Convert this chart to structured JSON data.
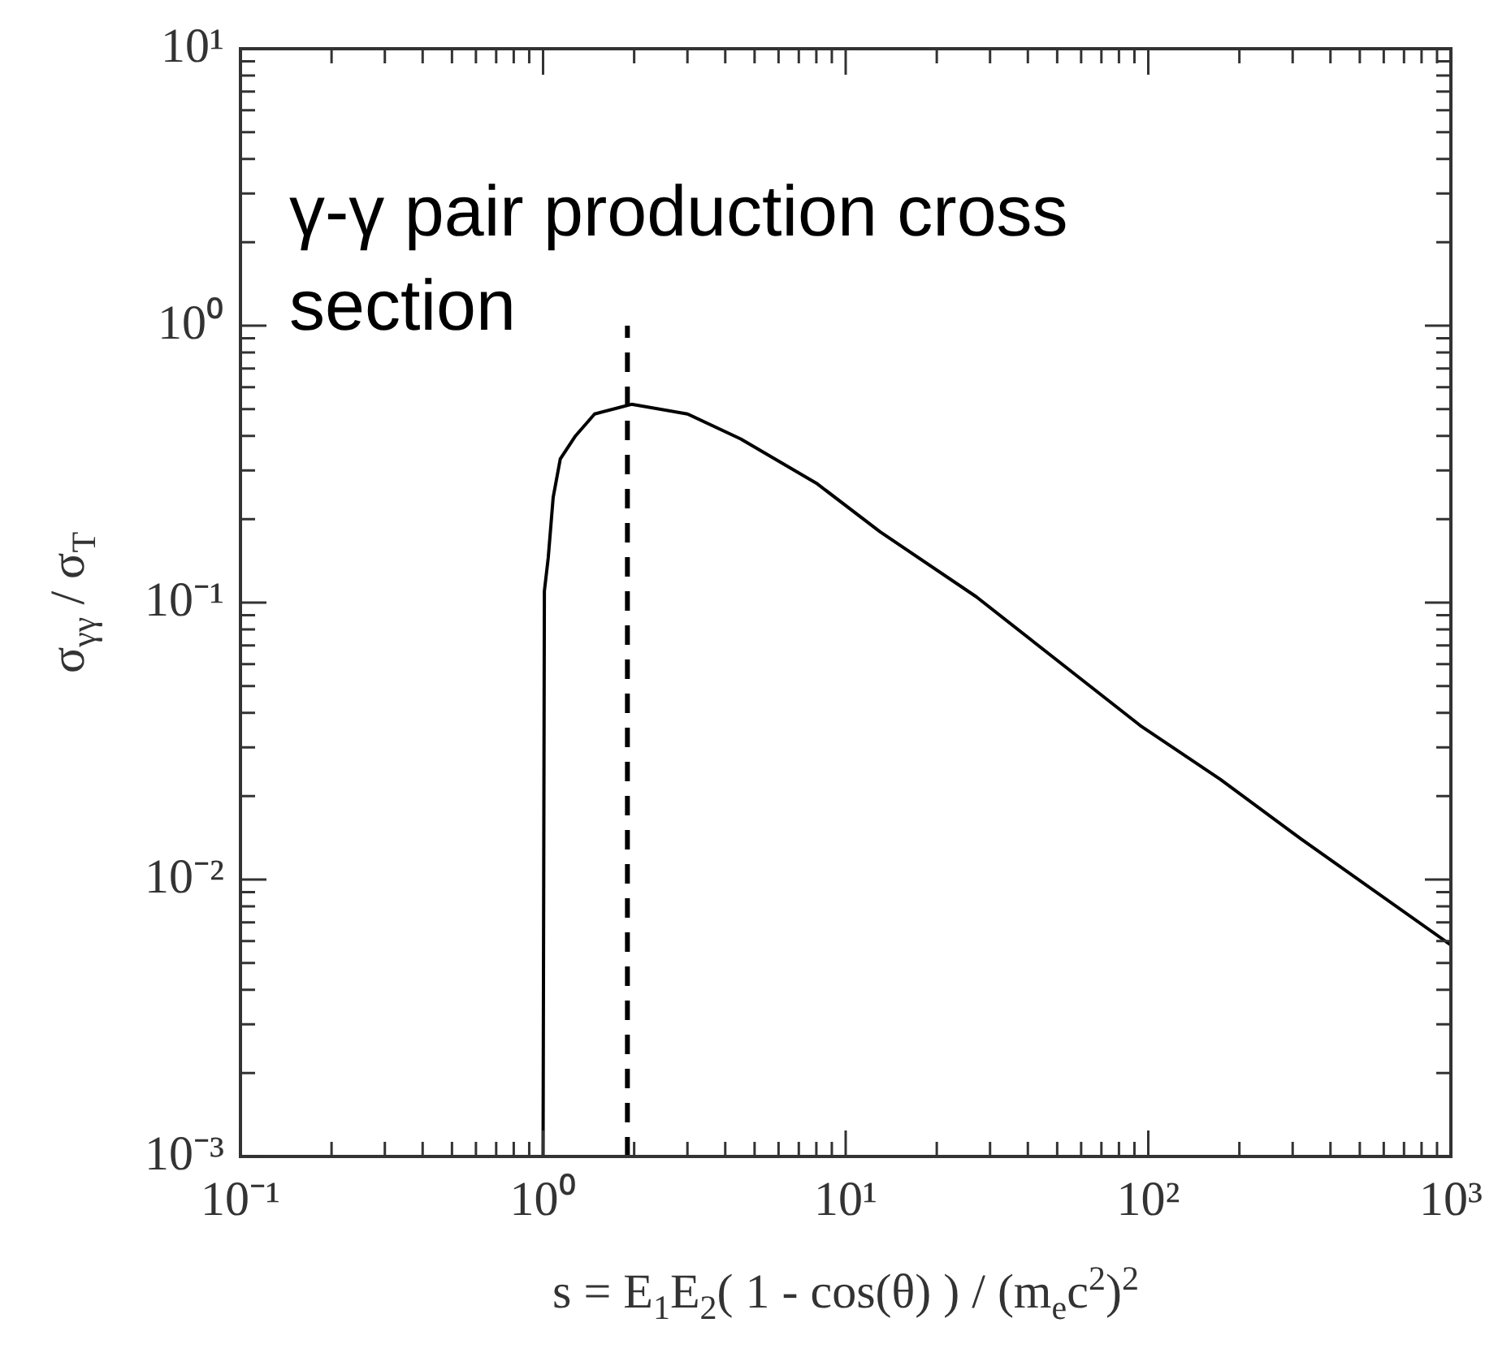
{
  "chart_data": {
    "type": "line",
    "xlabel": "s = E$_{1}$E$_{2}$( 1 - cos(θ) ) / (m$_{e}$c$^{2}$)$^{2}$",
    "ylabel": "σ$_{γγ}$ / σ$_{T}$",
    "annotations": [
      "γ-γ pair production cross section"
    ],
    "log": "xy",
    "xlim": [
      0.1,
      1000
    ],
    "ylim": [
      0.001,
      10
    ],
    "xticks": [
      {
        "value": 0.1,
        "label": "10⁻¹"
      },
      {
        "value": 0.2,
        "label": null
      },
      {
        "value": 0.3,
        "label": null
      },
      {
        "value": 0.4,
        "label": null
      },
      {
        "value": 0.5,
        "label": null
      },
      {
        "value": 0.6,
        "label": null
      },
      {
        "value": 0.7,
        "label": null
      },
      {
        "value": 0.8,
        "label": null
      },
      {
        "value": 0.9,
        "label": null
      },
      {
        "value": 1,
        "label": "10⁰"
      },
      {
        "value": 2,
        "label": null
      },
      {
        "value": 3,
        "label": null
      },
      {
        "value": 4,
        "label": null
      },
      {
        "value": 5,
        "label": null
      },
      {
        "value": 6,
        "label": null
      },
      {
        "value": 7,
        "label": null
      },
      {
        "value": 8,
        "label": null
      },
      {
        "value": 9,
        "label": null
      },
      {
        "value": 10,
        "label": "10¹"
      },
      {
        "value": 20,
        "label": null
      },
      {
        "value": 30,
        "label": null
      },
      {
        "value": 40,
        "label": null
      },
      {
        "value": 50,
        "label": null
      },
      {
        "value": 60,
        "label": null
      },
      {
        "value": 70,
        "label": null
      },
      {
        "value": 80,
        "label": null
      },
      {
        "value": 90,
        "label": null
      },
      {
        "value": 100,
        "label": "10²"
      },
      {
        "value": 200,
        "label": null
      },
      {
        "value": 300,
        "label": null
      },
      {
        "value": 400,
        "label": null
      },
      {
        "value": 500,
        "label": null
      },
      {
        "value": 600,
        "label": null
      },
      {
        "value": 700,
        "label": null
      },
      {
        "value": 800,
        "label": null
      },
      {
        "value": 900,
        "label": null
      },
      {
        "value": 1000,
        "label": "10³"
      }
    ],
    "yticks": [
      {
        "value": 0.001,
        "label": "10⁻³"
      },
      {
        "value": 0.002,
        "label": null
      },
      {
        "value": 0.003,
        "label": null
      },
      {
        "value": 0.004,
        "label": null
      },
      {
        "value": 0.005,
        "label": null
      },
      {
        "value": 0.006,
        "label": null
      },
      {
        "value": 0.007,
        "label": null
      },
      {
        "value": 0.008,
        "label": null
      },
      {
        "value": 0.009,
        "label": null
      },
      {
        "value": 0.01,
        "label": "10⁻²"
      },
      {
        "value": 0.02,
        "label": null
      },
      {
        "value": 0.03,
        "label": null
      },
      {
        "value": 0.04,
        "label": null
      },
      {
        "value": 0.05,
        "label": null
      },
      {
        "value": 0.06,
        "label": null
      },
      {
        "value": 0.07,
        "label": null
      },
      {
        "value": 0.08,
        "label": null
      },
      {
        "value": 0.09,
        "label": null
      },
      {
        "value": 0.1,
        "label": "10⁻¹"
      },
      {
        "value": 0.2,
        "label": null
      },
      {
        "value": 0.3,
        "label": null
      },
      {
        "value": 0.4,
        "label": null
      },
      {
        "value": 0.5,
        "label": null
      },
      {
        "value": 0.6,
        "label": null
      },
      {
        "value": 0.7,
        "label": null
      },
      {
        "value": 0.8,
        "label": null
      },
      {
        "value": 0.9,
        "label": null
      },
      {
        "value": 1,
        "label": "10⁰"
      },
      {
        "value": 2,
        "label": null
      },
      {
        "value": 3,
        "label": null
      },
      {
        "value": 4,
        "label": null
      },
      {
        "value": 5,
        "label": null
      },
      {
        "value": 6,
        "label": null
      },
      {
        "value": 7,
        "label": null
      },
      {
        "value": 8,
        "label": null
      },
      {
        "value": 9,
        "label": null
      },
      {
        "value": 10,
        "label": "10¹"
      }
    ],
    "grid": false,
    "legend": false,
    "marker": "none",
    "series": [
      {
        "color": "#000000",
        "x": [
          1,
          1.01,
          1.04,
          1.08,
          1.14,
          1.28,
          1.48,
          1.96,
          3.0,
          4.5,
          8.0,
          13,
          27,
          94,
          173,
          320,
          1000
        ],
        "values": [
          0.001,
          0.11,
          0.145,
          0.24,
          0.33,
          0.4,
          0.48,
          0.52,
          0.48,
          0.39,
          0.27,
          0.18,
          0.105,
          0.036,
          0.023,
          0.014,
          0.0058
        ]
      },
      {
        "color": "#000000",
        "x": [
          1.9,
          1.9
        ],
        "values": [
          0.001,
          1
        ],
        "line_style": "dashed"
      }
    ]
  }
}
